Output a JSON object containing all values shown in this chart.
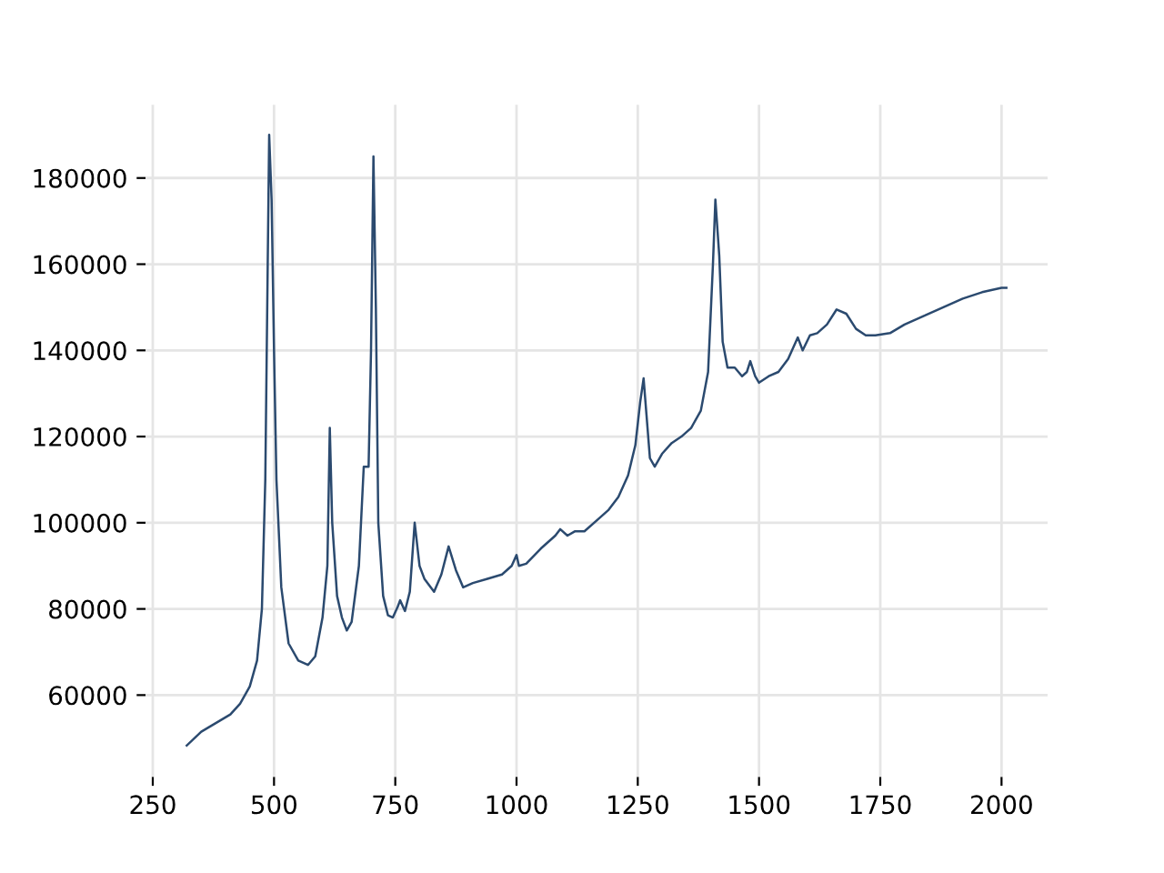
{
  "chart_data": {
    "type": "line",
    "color": "#2b4a6f",
    "x": [
      320,
      350,
      380,
      410,
      430,
      450,
      465,
      475,
      482,
      487,
      490,
      495,
      500,
      505,
      515,
      530,
      550,
      570,
      585,
      600,
      610,
      615,
      620,
      630,
      640,
      650,
      660,
      675,
      685,
      695,
      700,
      705,
      710,
      715,
      725,
      735,
      745,
      755,
      760,
      770,
      780,
      790,
      800,
      810,
      830,
      845,
      860,
      875,
      890,
      910,
      940,
      970,
      990,
      1000,
      1005,
      1020,
      1050,
      1080,
      1090,
      1105,
      1120,
      1140,
      1170,
      1190,
      1210,
      1230,
      1245,
      1255,
      1262,
      1268,
      1275,
      1285,
      1300,
      1320,
      1340,
      1360,
      1380,
      1395,
      1405,
      1410,
      1418,
      1425,
      1435,
      1450,
      1465,
      1475,
      1482,
      1492,
      1500,
      1520,
      1540,
      1560,
      1580,
      1590,
      1605,
      1620,
      1640,
      1660,
      1680,
      1700,
      1720,
      1740,
      1770,
      1800,
      1840,
      1880,
      1920,
      1960,
      2000,
      2010
    ],
    "values": [
      48300,
      51500,
      53500,
      55500,
      58000,
      62000,
      68000,
      80000,
      110000,
      160000,
      190000,
      175000,
      140000,
      110000,
      85000,
      72000,
      68000,
      67000,
      69000,
      78000,
      90000,
      122000,
      100000,
      83000,
      78000,
      75000,
      77000,
      90000,
      113000,
      113000,
      140000,
      185000,
      150000,
      100000,
      83000,
      78500,
      78000,
      80500,
      82000,
      79500,
      84000,
      100000,
      90000,
      87000,
      84000,
      88000,
      94500,
      89000,
      85000,
      86000,
      87000,
      88000,
      90000,
      92500,
      90000,
      90500,
      94000,
      97000,
      98500,
      97000,
      98000,
      98000,
      101000,
      103000,
      106000,
      111000,
      118000,
      128000,
      133500,
      125000,
      115000,
      113000,
      116000,
      118500,
      120000,
      122000,
      126000,
      135000,
      160000,
      175000,
      162000,
      142000,
      136000,
      136000,
      134000,
      135000,
      137500,
      134000,
      132500,
      134000,
      135000,
      138000,
      143000,
      140000,
      143500,
      144000,
      146000,
      149500,
      148500,
      145000,
      143500,
      143500,
      144000,
      146000,
      148000,
      150000,
      152000,
      153500,
      154500,
      154500
    ],
    "xlim": [
      235,
      2095
    ],
    "ylim": [
      41000,
      197000
    ],
    "xticks": [
      250,
      500,
      750,
      1000,
      1250,
      1500,
      1750,
      2000
    ],
    "yticks": [
      60000,
      80000,
      100000,
      120000,
      140000,
      160000,
      180000
    ],
    "grid": true,
    "marker": "none",
    "line_style": "solid"
  }
}
